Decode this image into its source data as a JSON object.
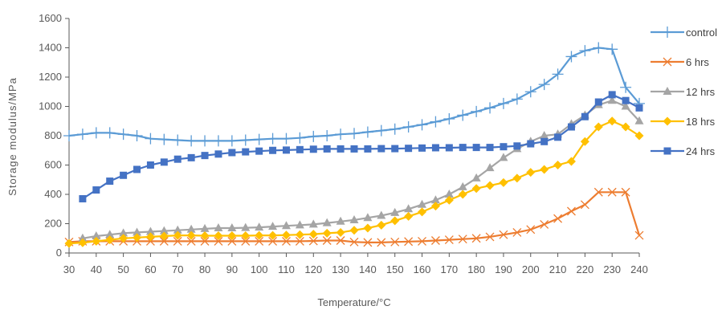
{
  "chart_data": {
    "type": "line",
    "title": "",
    "xlabel": "Temperature/°C",
    "ylabel": "Storage modulus/MPa",
    "xlim": [
      30,
      240
    ],
    "ylim": [
      0,
      1600
    ],
    "xticks": [
      30,
      40,
      50,
      60,
      70,
      80,
      90,
      100,
      110,
      120,
      130,
      140,
      150,
      160,
      170,
      180,
      190,
      200,
      210,
      220,
      230,
      240
    ],
    "yticks": [
      0,
      200,
      400,
      600,
      800,
      1000,
      1200,
      1400,
      1600
    ],
    "grid": false,
    "legend_position": "right",
    "series": [
      {
        "name": "control",
        "color": "#5B9BD5",
        "marker": "plus",
        "x": [
          30,
          35,
          40,
          45,
          50,
          55,
          60,
          65,
          70,
          75,
          80,
          85,
          90,
          95,
          100,
          105,
          110,
          115,
          120,
          125,
          130,
          135,
          140,
          145,
          150,
          155,
          160,
          165,
          170,
          175,
          180,
          185,
          190,
          195,
          200,
          205,
          210,
          215,
          220,
          225,
          230,
          235,
          240
        ],
        "values": [
          800,
          810,
          820,
          820,
          810,
          800,
          780,
          775,
          770,
          765,
          765,
          765,
          765,
          770,
          775,
          780,
          780,
          785,
          795,
          800,
          810,
          815,
          825,
          835,
          845,
          860,
          875,
          895,
          915,
          940,
          965,
          990,
          1020,
          1050,
          1100,
          1150,
          1220,
          1340,
          1380,
          1400,
          1390,
          1130,
          1020
        ]
      },
      {
        "name": "6 hrs",
        "color": "#ED7D31",
        "marker": "x",
        "x": [
          30,
          35,
          40,
          45,
          50,
          55,
          60,
          65,
          70,
          75,
          80,
          85,
          90,
          95,
          100,
          105,
          110,
          115,
          120,
          125,
          130,
          135,
          140,
          145,
          150,
          155,
          160,
          165,
          170,
          175,
          180,
          185,
          190,
          195,
          200,
          205,
          210,
          215,
          220,
          225,
          230,
          235,
          240
        ],
        "values": [
          75,
          80,
          80,
          80,
          80,
          80,
          80,
          80,
          80,
          80,
          80,
          80,
          80,
          80,
          80,
          80,
          80,
          80,
          82,
          85,
          85,
          75,
          72,
          72,
          75,
          78,
          80,
          85,
          90,
          95,
          100,
          110,
          125,
          140,
          160,
          195,
          235,
          285,
          330,
          415,
          415,
          415,
          120
        ]
      },
      {
        "name": "12 hrs",
        "color": "#A5A5A5",
        "marker": "triangle",
        "x": [
          35,
          40,
          45,
          50,
          55,
          60,
          65,
          70,
          75,
          80,
          85,
          90,
          95,
          100,
          105,
          110,
          115,
          120,
          125,
          130,
          135,
          140,
          145,
          150,
          155,
          160,
          165,
          170,
          175,
          180,
          185,
          190,
          195,
          200,
          205,
          210,
          215,
          220,
          225,
          230,
          235,
          240
        ],
        "values": [
          100,
          115,
          125,
          135,
          140,
          145,
          150,
          155,
          160,
          165,
          170,
          170,
          172,
          175,
          180,
          185,
          190,
          195,
          205,
          215,
          225,
          240,
          255,
          275,
          300,
          330,
          360,
          400,
          450,
          510,
          580,
          650,
          710,
          760,
          800,
          810,
          880,
          940,
          1010,
          1040,
          1000,
          900
        ]
      },
      {
        "name": "18 hrs",
        "color": "#FFC000",
        "marker": "diamond",
        "x": [
          30,
          35,
          40,
          45,
          50,
          55,
          60,
          65,
          70,
          75,
          80,
          85,
          90,
          95,
          100,
          105,
          110,
          115,
          120,
          125,
          130,
          135,
          140,
          145,
          150,
          155,
          160,
          165,
          170,
          175,
          180,
          185,
          190,
          195,
          200,
          205,
          210,
          215,
          220,
          225,
          230,
          235,
          240
        ],
        "values": [
          65,
          70,
          80,
          90,
          100,
          105,
          110,
          115,
          120,
          120,
          118,
          118,
          118,
          118,
          120,
          120,
          122,
          125,
          128,
          135,
          140,
          155,
          170,
          190,
          220,
          250,
          280,
          320,
          360,
          400,
          440,
          460,
          480,
          510,
          550,
          570,
          600,
          625,
          760,
          860,
          900,
          860,
          800
        ]
      },
      {
        "name": "24 hrs",
        "color": "#4472C4",
        "marker": "square",
        "x": [
          35,
          40,
          45,
          50,
          55,
          60,
          65,
          70,
          75,
          80,
          85,
          90,
          95,
          100,
          105,
          110,
          115,
          120,
          125,
          130,
          135,
          140,
          145,
          150,
          155,
          160,
          165,
          170,
          175,
          180,
          185,
          190,
          195,
          200,
          205,
          210,
          215,
          220,
          225,
          230,
          235,
          240
        ],
        "values": [
          370,
          430,
          490,
          530,
          570,
          600,
          620,
          640,
          650,
          665,
          675,
          685,
          690,
          695,
          700,
          702,
          705,
          708,
          710,
          710,
          710,
          710,
          712,
          712,
          714,
          716,
          718,
          718,
          720,
          720,
          720,
          725,
          730,
          745,
          760,
          790,
          860,
          930,
          1030,
          1080,
          1040,
          990
        ]
      }
    ]
  }
}
